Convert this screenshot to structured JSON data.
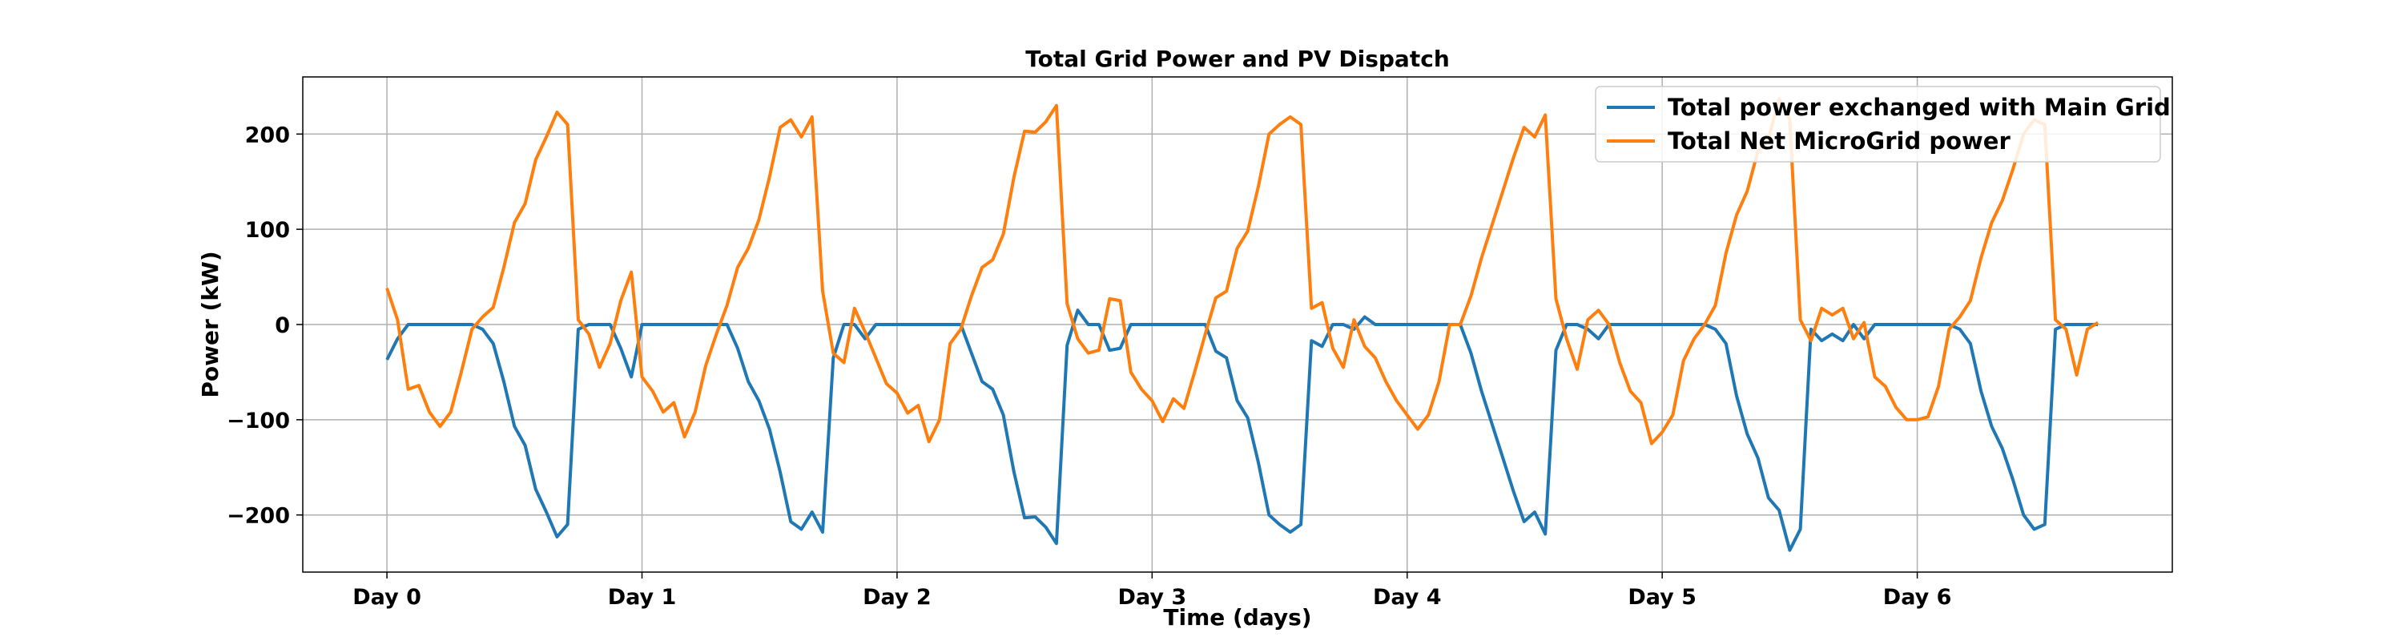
{
  "chart_data": {
    "type": "line",
    "title": "Total Grid Power and PV Dispatch",
    "xlabel": "Time (days)",
    "ylabel": "Power (kW)",
    "xlim": [
      -0.33,
      7.0
    ],
    "ylim": [
      -260,
      260
    ],
    "x_ticks": [
      0,
      1,
      2,
      3,
      4,
      5,
      6
    ],
    "x_tick_labels": [
      "Day 0",
      "Day 1",
      "Day 2",
      "Day 3",
      "Day 4",
      "Day 5",
      "Day 6"
    ],
    "y_ticks": [
      -200,
      -100,
      0,
      100,
      200
    ],
    "y_tick_labels": [
      "−200",
      "−100",
      "0",
      "100",
      "200"
    ],
    "grid": true,
    "legend_position": "top-right",
    "x_step": 0.04166667,
    "series": [
      {
        "name": "Total power exchanged with Main Grid",
        "color": "#1f77b4",
        "values": [
          -37,
          -15,
          0,
          0,
          0,
          0,
          0,
          0,
          0,
          -5,
          -20,
          -60,
          -107,
          -127,
          -173,
          -197,
          -223,
          -210,
          -5,
          0,
          0,
          0,
          -25,
          -55,
          0,
          0,
          0,
          0,
          0,
          0,
          0,
          0,
          0,
          -25,
          -60,
          -80,
          -110,
          -155,
          -207,
          -215,
          -197,
          -218,
          -35,
          0,
          0,
          -15,
          0,
          0,
          0,
          0,
          0,
          0,
          0,
          0,
          0,
          -30,
          -60,
          -68,
          -95,
          -155,
          -203,
          -202,
          -213,
          -230,
          -22,
          15,
          0,
          0,
          -27,
          -25,
          0,
          0,
          0,
          0,
          0,
          0,
          0,
          0,
          -28,
          -35,
          -80,
          -98,
          -145,
          -200,
          -210,
          -218,
          -210,
          -17,
          -23,
          0,
          0,
          -5,
          8,
          0,
          0,
          0,
          0,
          0,
          0,
          0,
          0,
          0,
          -30,
          -70,
          -105,
          -140,
          -175,
          -207,
          -197,
          -220,
          -27,
          0,
          0,
          -5,
          -15,
          0,
          0,
          0,
          0,
          0,
          0,
          0,
          0,
          0,
          0,
          -5,
          -20,
          -75,
          -115,
          -140,
          -182,
          -195,
          -237,
          -215,
          -5,
          -17,
          -10,
          -17,
          0,
          -15,
          0,
          0,
          0,
          0,
          0,
          0,
          0,
          0,
          -5,
          -20,
          -70,
          -107,
          -130,
          -163,
          -200,
          -215,
          -210,
          -5,
          0,
          0,
          0,
          0
        ]
      },
      {
        "name": "Total Net MicroGrid power",
        "color": "#ff7f0e",
        "values": [
          38,
          5,
          -68,
          -64,
          -92,
          -107,
          -92,
          -50,
          -5,
          8,
          18,
          60,
          107,
          127,
          173,
          197,
          223,
          210,
          5,
          -10,
          -45,
          -20,
          25,
          55,
          -55,
          -70,
          -92,
          -82,
          -118,
          -92,
          -43,
          -10,
          20,
          60,
          80,
          110,
          155,
          207,
          215,
          197,
          218,
          35,
          -30,
          -40,
          17,
          -8,
          -35,
          -62,
          -72,
          -93,
          -85,
          -123,
          -100,
          -20,
          -5,
          30,
          60,
          68,
          95,
          155,
          203,
          202,
          213,
          230,
          22,
          -15,
          -30,
          -27,
          27,
          25,
          -50,
          -68,
          -80,
          -102,
          -78,
          -88,
          -50,
          -10,
          28,
          35,
          80,
          98,
          145,
          200,
          210,
          218,
          210,
          17,
          23,
          -25,
          -45,
          5,
          -23,
          -35,
          -60,
          -80,
          -95,
          -110,
          -95,
          -60,
          0,
          0,
          30,
          70,
          105,
          140,
          175,
          207,
          197,
          220,
          27,
          -15,
          -47,
          5,
          15,
          0,
          -40,
          -70,
          -82,
          -125,
          -113,
          -95,
          -38,
          -15,
          0,
          20,
          75,
          115,
          140,
          182,
          195,
          237,
          215,
          5,
          -17,
          17,
          10,
          17,
          -15,
          2,
          -55,
          -65,
          -87,
          -100,
          -100,
          -97,
          -65,
          -5,
          8,
          25,
          70,
          107,
          130,
          163,
          200,
          215,
          210,
          5,
          -5,
          -53,
          -5,
          2
        ]
      }
    ]
  }
}
